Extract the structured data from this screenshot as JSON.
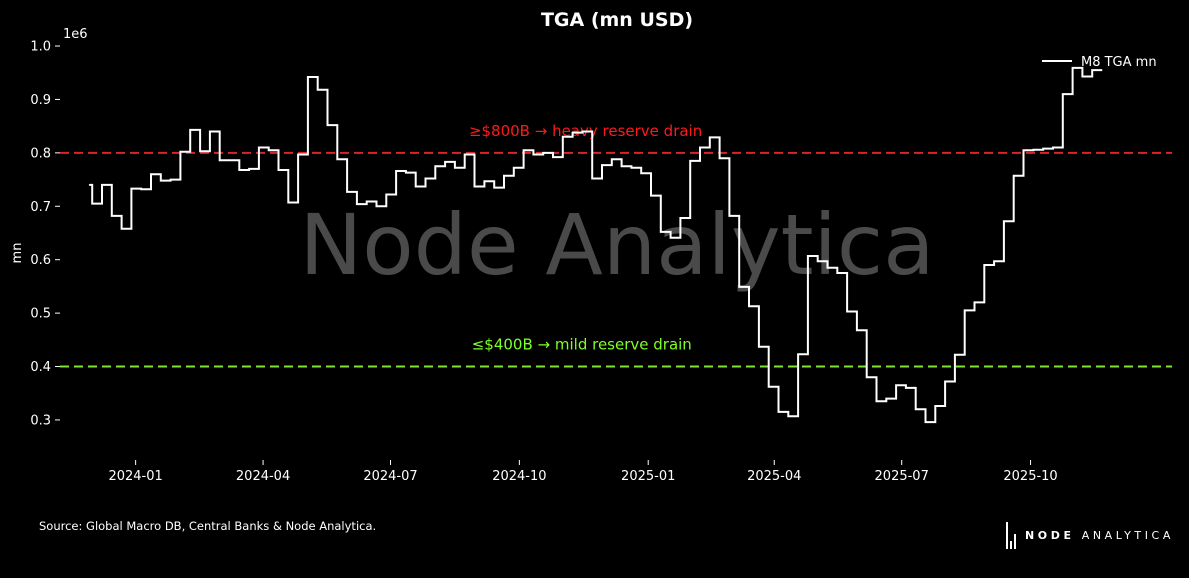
{
  "chart_data": {
    "type": "line",
    "title": "TGA (mn USD)",
    "ylabel": "mn",
    "y_offset_label": "1e6",
    "ylim": [
      0.225,
      1.03
    ],
    "xlim": [
      "2023-11-08",
      "2026-01-10"
    ],
    "yticks": [
      0.3,
      0.4,
      0.5,
      0.6,
      0.7,
      0.8,
      0.9,
      1.0
    ],
    "ytick_labels": [
      "0.3",
      "0.4",
      "0.5",
      "0.6",
      "0.7",
      "0.8",
      "0.9",
      "1.0"
    ],
    "xticks": [
      "2024-01-01",
      "2024-04-01",
      "2024-07-01",
      "2024-10-01",
      "2025-01-01",
      "2025-04-01",
      "2025-07-01",
      "2025-10-01"
    ],
    "xtick_labels": [
      "2024-01",
      "2024-04",
      "2024-07",
      "2024-10",
      "2025-01",
      "2025-04",
      "2025-07",
      "2025-10"
    ],
    "grid": false,
    "legend_position": "top-right",
    "series": [
      {
        "name": "M8 TGA mn",
        "color": "#ffffff",
        "step": true,
        "x": [
          "2023-11-29",
          "2023-12-01",
          "2023-12-08",
          "2023-12-15",
          "2023-12-22",
          "2023-12-29",
          "2024-01-05",
          "2024-01-12",
          "2024-01-19",
          "2024-01-26",
          "2024-02-02",
          "2024-02-09",
          "2024-02-16",
          "2024-02-23",
          "2024-03-01",
          "2024-03-08",
          "2024-03-15",
          "2024-03-22",
          "2024-03-29",
          "2024-04-05",
          "2024-04-12",
          "2024-04-19",
          "2024-04-26",
          "2024-05-03",
          "2024-05-10",
          "2024-05-17",
          "2024-05-24",
          "2024-05-31",
          "2024-06-07",
          "2024-06-14",
          "2024-06-21",
          "2024-06-28",
          "2024-07-05",
          "2024-07-12",
          "2024-07-19",
          "2024-07-26",
          "2024-08-02",
          "2024-08-09",
          "2024-08-16",
          "2024-08-23",
          "2024-08-30",
          "2024-09-06",
          "2024-09-13",
          "2024-09-20",
          "2024-09-27",
          "2024-10-04",
          "2024-10-11",
          "2024-10-18",
          "2024-10-25",
          "2024-11-01",
          "2024-11-08",
          "2024-11-15",
          "2024-11-22",
          "2024-11-29",
          "2024-12-06",
          "2024-12-13",
          "2024-12-20",
          "2024-12-27",
          "2025-01-03",
          "2025-01-10",
          "2025-01-17",
          "2025-01-24",
          "2025-01-31",
          "2025-02-07",
          "2025-02-14",
          "2025-02-21",
          "2025-02-28",
          "2025-03-07",
          "2025-03-14",
          "2025-03-21",
          "2025-03-28",
          "2025-04-04",
          "2025-04-11",
          "2025-04-18",
          "2025-04-25",
          "2025-05-02",
          "2025-05-09",
          "2025-05-16",
          "2025-05-23",
          "2025-05-30",
          "2025-06-06",
          "2025-06-13",
          "2025-06-20",
          "2025-06-27",
          "2025-07-04",
          "2025-07-11",
          "2025-07-18",
          "2025-07-25",
          "2025-08-01",
          "2025-08-08",
          "2025-08-15",
          "2025-08-22",
          "2025-08-29",
          "2025-09-05",
          "2025-09-12",
          "2025-09-19",
          "2025-09-26",
          "2025-10-03",
          "2025-10-10",
          "2025-10-17",
          "2025-10-24",
          "2025-10-31",
          "2025-11-07",
          "2025-11-14",
          "2025-11-21"
        ],
        "values": [
          0.74,
          0.705,
          0.74,
          0.682,
          0.658,
          0.733,
          0.732,
          0.76,
          0.748,
          0.75,
          0.802,
          0.843,
          0.803,
          0.84,
          0.786,
          0.786,
          0.768,
          0.77,
          0.81,
          0.805,
          0.768,
          0.707,
          0.797,
          0.942,
          0.918,
          0.852,
          0.788,
          0.727,
          0.704,
          0.709,
          0.7,
          0.722,
          0.766,
          0.763,
          0.737,
          0.752,
          0.775,
          0.783,
          0.772,
          0.797,
          0.737,
          0.747,
          0.735,
          0.757,
          0.772,
          0.805,
          0.797,
          0.8,
          0.792,
          0.83,
          0.838,
          0.84,
          0.752,
          0.777,
          0.788,
          0.775,
          0.772,
          0.762,
          0.72,
          0.652,
          0.641,
          0.678,
          0.785,
          0.81,
          0.829,
          0.79,
          0.682,
          0.549,
          0.513,
          0.437,
          0.362,
          0.315,
          0.307,
          0.423,
          0.607,
          0.597,
          0.585,
          0.575,
          0.503,
          0.468,
          0.38,
          0.335,
          0.34,
          0.365,
          0.36,
          0.32,
          0.296,
          0.326,
          0.372,
          0.422,
          0.505,
          0.52,
          0.59,
          0.597,
          0.672,
          0.757,
          0.805,
          0.806,
          0.808,
          0.81,
          0.91,
          0.959,
          0.943,
          0.955,
          0.955
        ]
      }
    ],
    "hlines": [
      {
        "y": 0.8,
        "color": "#d6262b",
        "label": "≥$800B → heavy reserve drain",
        "label_color": "#ff1a1a",
        "label_x": "2024-08-26"
      },
      {
        "y": 0.4,
        "color": "#7fe52f",
        "label": "≤$400B → mild reserve drain",
        "label_color": "#7fff2a",
        "label_x": "2024-08-28"
      }
    ],
    "watermark": "Node Analytica"
  },
  "footer": {
    "source": "Source: Global Macro DB, Central Banks & Node Analytica.",
    "brand_strong": "NODE",
    "brand_light": "ANALYTICA"
  }
}
